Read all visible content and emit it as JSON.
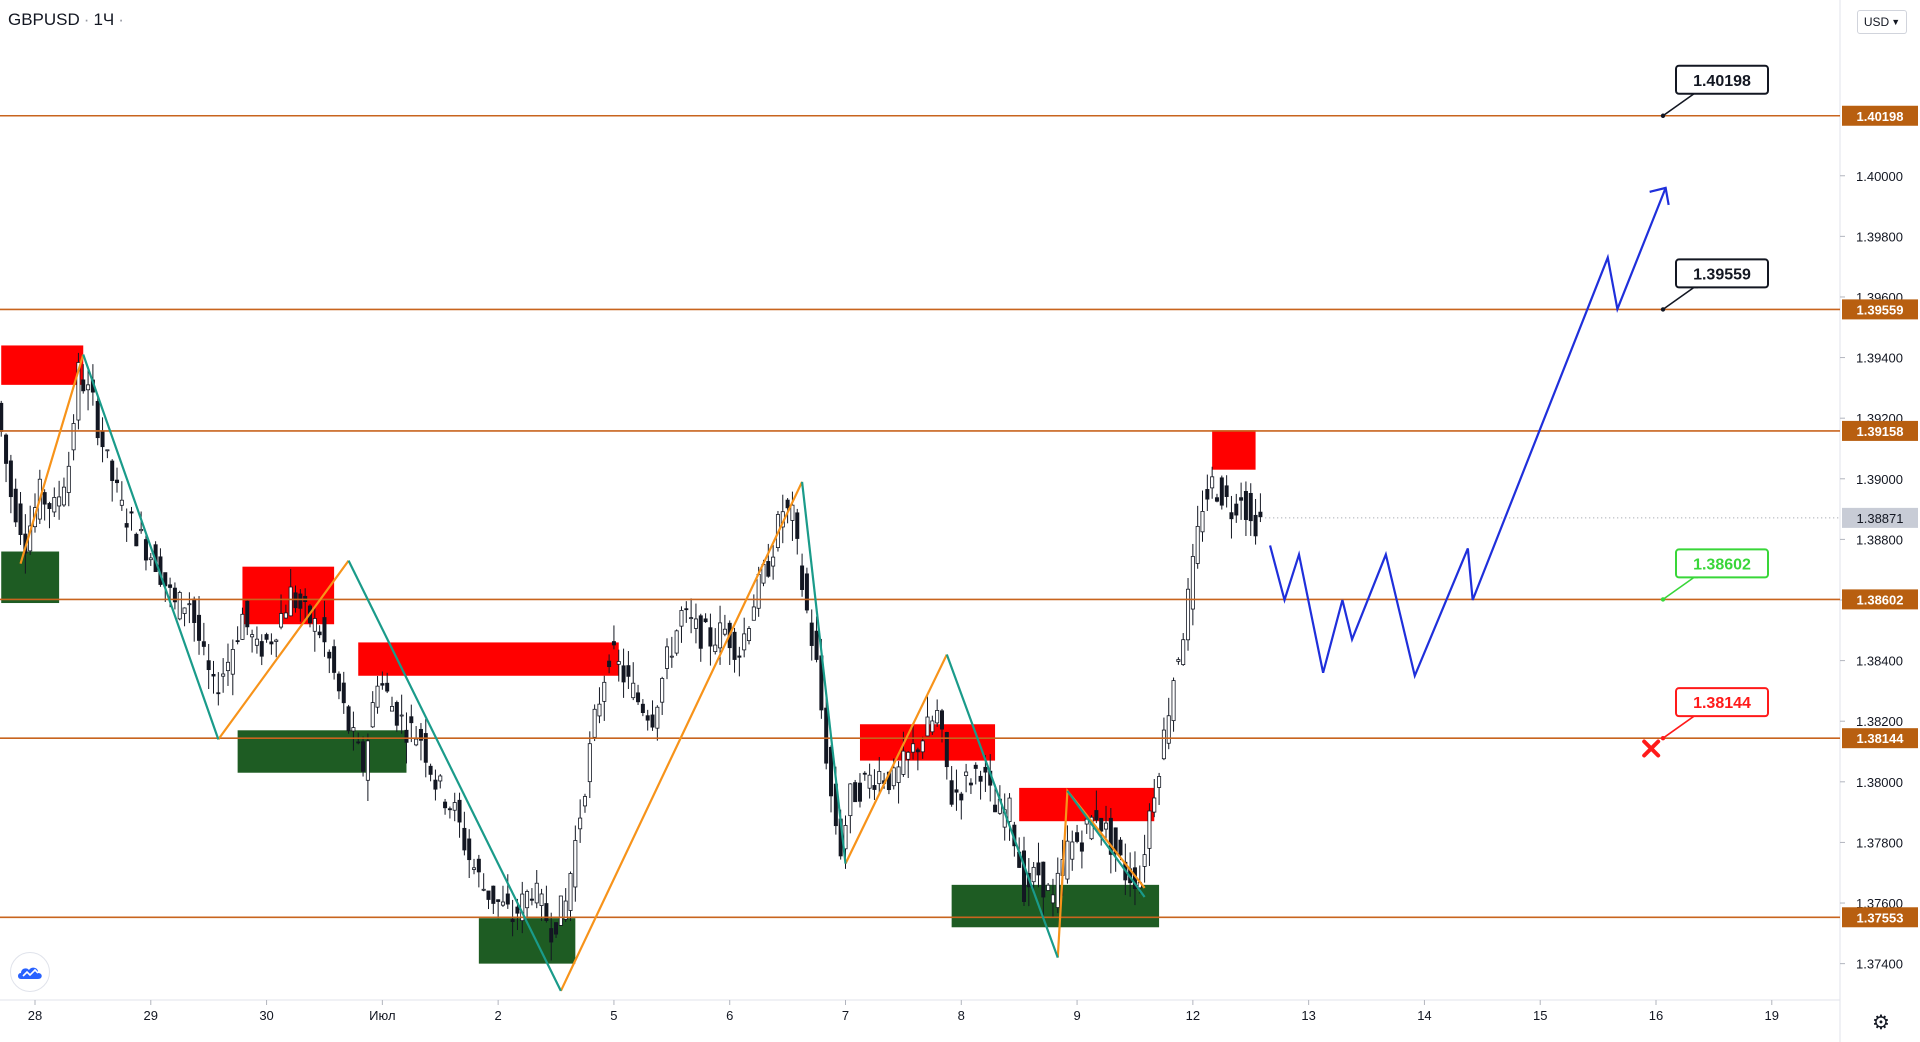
{
  "header": {
    "symbol": "GBPUSD",
    "interval": "1Ч",
    "currency_selector": "USD"
  },
  "colors": {
    "background": "#ffffff",
    "level_line": "#c8641e",
    "level_tag_bg": "#b85f10",
    "current_price_tag": "#c8ccd6",
    "up_candle": "#131722",
    "supply_zone": "#ff0000",
    "demand_zone": "#1e5c23",
    "impulse_up": "#f7931a",
    "impulse_down": "#1a9b8a",
    "forecast": "#1f2fdb",
    "target_green": "#39d639",
    "stop_red": "#ff1a1a"
  },
  "icons": {
    "logo": "tradingview-cloud-icon",
    "settings": "gear-icon",
    "stop": "x-mark-icon"
  },
  "chart_data": {
    "type": "candlestick",
    "timeframe": "1H",
    "y_axis": {
      "side": "right",
      "range": [
        1.3728,
        1.4058
      ],
      "ticks": [
        "1.40000",
        "1.39800",
        "1.39600",
        "1.39400",
        "1.39200",
        "1.39000",
        "1.38800",
        "1.38600",
        "1.38400",
        "1.38200",
        "1.38000",
        "1.37800",
        "1.37600",
        "1.37400"
      ]
    },
    "x_axis": {
      "ticks": [
        {
          "label": "28",
          "t": 0
        },
        {
          "label": "29",
          "t": 24
        },
        {
          "label": "30",
          "t": 48
        },
        {
          "label": "Июл",
          "t": 72
        },
        {
          "label": "2",
          "t": 96
        },
        {
          "label": "5",
          "t": 120
        },
        {
          "label": "6",
          "t": 144
        },
        {
          "label": "7",
          "t": 168
        },
        {
          "label": "8",
          "t": 192
        },
        {
          "label": "9",
          "t": 216
        },
        {
          "label": "12",
          "t": 240
        },
        {
          "label": "13",
          "t": 264
        },
        {
          "label": "14",
          "t": 288
        },
        {
          "label": "15",
          "t": 312
        },
        {
          "label": "16",
          "t": 336
        },
        {
          "label": "19",
          "t": 360
        }
      ]
    },
    "current_price": {
      "value": 1.38871,
      "label": "1.38871"
    },
    "levels": [
      {
        "value": 1.40198,
        "label": "1.40198"
      },
      {
        "value": 1.39559,
        "label": "1.39559"
      },
      {
        "value": 1.39158,
        "label": "1.39158"
      },
      {
        "value": 1.38602,
        "label": "1.38602"
      },
      {
        "value": 1.38144,
        "label": "1.38144"
      },
      {
        "value": 1.37553,
        "label": "1.37553"
      }
    ],
    "callouts": [
      {
        "label": "1.40198",
        "value": 1.40198,
        "style": "black"
      },
      {
        "label": "1.39559",
        "value": 1.39559,
        "style": "black"
      },
      {
        "label": "1.38602",
        "value": 1.38602,
        "style": "green"
      },
      {
        "label": "1.38144",
        "value": 1.38144,
        "style": "red"
      }
    ],
    "zones": [
      {
        "kind": "supply",
        "t0": -7,
        "t1": 10,
        "top": 1.3944,
        "bottom": 1.3931
      },
      {
        "kind": "demand",
        "t0": -7,
        "t1": 5,
        "top": 1.3876,
        "bottom": 1.3859
      },
      {
        "kind": "supply",
        "t0": 43,
        "t1": 62,
        "top": 1.3871,
        "bottom": 1.3852
      },
      {
        "kind": "demand",
        "t0": 42,
        "t1": 77,
        "top": 1.3817,
        "bottom": 1.3803
      },
      {
        "kind": "supply",
        "t0": 67,
        "t1": 121,
        "top": 1.3846,
        "bottom": 1.3835
      },
      {
        "kind": "demand",
        "t0": 92,
        "t1": 112,
        "top": 1.3755,
        "bottom": 1.374
      },
      {
        "kind": "supply",
        "t0": 171,
        "t1": 199,
        "top": 1.3819,
        "bottom": 1.3807
      },
      {
        "kind": "demand",
        "t0": 190,
        "t1": 233,
        "top": 1.3766,
        "bottom": 1.3752
      },
      {
        "kind": "supply",
        "t0": 204,
        "t1": 232,
        "top": 1.3798,
        "bottom": 1.3787
      },
      {
        "kind": "supply",
        "t0": 244,
        "t1": 253,
        "top": 1.3916,
        "bottom": 1.3903
      }
    ],
    "waves": {
      "orange": [
        [
          [
            -3,
            1.3872
          ],
          [
            10,
            1.3941
          ]
        ],
        [
          [
            38,
            1.3814
          ],
          [
            65,
            1.3873
          ]
        ],
        [
          [
            109,
            1.3731
          ],
          [
            159,
            1.3899
          ]
        ],
        [
          [
            168,
            1.3773
          ],
          [
            189,
            1.3842
          ]
        ],
        [
          [
            212,
            1.3742
          ],
          [
            214,
            1.3797
          ],
          [
            230,
            1.3765
          ]
        ]
      ],
      "teal": [
        [
          [
            10,
            1.3941
          ],
          [
            38,
            1.3814
          ]
        ],
        [
          [
            65,
            1.3873
          ],
          [
            109,
            1.3731
          ]
        ],
        [
          [
            159,
            1.3899
          ],
          [
            168,
            1.3773
          ]
        ],
        [
          [
            189,
            1.3842
          ],
          [
            212,
            1.3742
          ]
        ],
        [
          [
            214,
            1.3797
          ],
          [
            230,
            1.3762
          ]
        ]
      ]
    },
    "forecast_path": [
      [
        256,
        1.3878
      ],
      [
        259,
        1.386
      ],
      [
        262,
        1.3875
      ],
      [
        267,
        1.3836
      ],
      [
        271,
        1.386
      ],
      [
        273,
        1.3847
      ],
      [
        280,
        1.3875
      ],
      [
        286,
        1.3835
      ],
      [
        297,
        1.3877
      ],
      [
        298,
        1.386
      ],
      [
        326,
        1.3973
      ],
      [
        328,
        1.3956
      ],
      [
        338,
        1.3996
      ]
    ],
    "stop_marker": {
      "t": 335,
      "value": 1.3811
    },
    "ohlc_path": [
      [
        -7,
        1.3925
      ],
      [
        -4,
        1.3895
      ],
      [
        -1,
        1.388
      ],
      [
        2,
        1.3895
      ],
      [
        5,
        1.389
      ],
      [
        8,
        1.3905
      ],
      [
        10,
        1.3935
      ],
      [
        13,
        1.3925
      ],
      [
        16,
        1.3905
      ],
      [
        19,
        1.389
      ],
      [
        23,
        1.388
      ],
      [
        26,
        1.3873
      ],
      [
        30,
        1.3858
      ],
      [
        33,
        1.386
      ],
      [
        36,
        1.384
      ],
      [
        38,
        1.383
      ],
      [
        41,
        1.384
      ],
      [
        44,
        1.3855
      ],
      [
        47,
        1.3843
      ],
      [
        50,
        1.3848
      ],
      [
        54,
        1.3862
      ],
      [
        57,
        1.3855
      ],
      [
        60,
        1.385
      ],
      [
        63,
        1.3835
      ],
      [
        66,
        1.3818
      ],
      [
        69,
        1.3805
      ],
      [
        72,
        1.3835
      ],
      [
        75,
        1.3825
      ],
      [
        78,
        1.3818
      ],
      [
        81,
        1.3815
      ],
      [
        84,
        1.38
      ],
      [
        88,
        1.379
      ],
      [
        91,
        1.3775
      ],
      [
        94,
        1.3765
      ],
      [
        97,
        1.376
      ],
      [
        100,
        1.3755
      ],
      [
        104,
        1.3765
      ],
      [
        108,
        1.3752
      ],
      [
        111,
        1.376
      ],
      [
        114,
        1.379
      ],
      [
        117,
        1.382
      ],
      [
        120,
        1.3843
      ],
      [
        123,
        1.3835
      ],
      [
        126,
        1.3827
      ],
      [
        129,
        1.3822
      ],
      [
        132,
        1.384
      ],
      [
        135,
        1.3855
      ],
      [
        138,
        1.385
      ],
      [
        141,
        1.3847
      ],
      [
        144,
        1.385
      ],
      [
        147,
        1.3843
      ],
      [
        150,
        1.386
      ],
      [
        153,
        1.3872
      ],
      [
        156,
        1.389
      ],
      [
        158,
        1.3887
      ],
      [
        160,
        1.3865
      ],
      [
        163,
        1.3838
      ],
      [
        166,
        1.3795
      ],
      [
        168,
        1.3778
      ],
      [
        170,
        1.3795
      ],
      [
        173,
        1.38
      ],
      [
        176,
        1.3803
      ],
      [
        179,
        1.38
      ],
      [
        182,
        1.3808
      ],
      [
        185,
        1.3815
      ],
      [
        188,
        1.3822
      ],
      [
        191,
        1.3795
      ],
      [
        194,
        1.38
      ],
      [
        197,
        1.3805
      ],
      [
        200,
        1.379
      ],
      [
        203,
        1.379
      ],
      [
        206,
        1.3765
      ],
      [
        209,
        1.377
      ],
      [
        212,
        1.376
      ],
      [
        215,
        1.3778
      ],
      [
        218,
        1.3782
      ],
      [
        221,
        1.379
      ],
      [
        224,
        1.378
      ],
      [
        227,
        1.377
      ],
      [
        230,
        1.3768
      ],
      [
        232,
        1.379
      ],
      [
        235,
        1.3815
      ],
      [
        237,
        1.3835
      ],
      [
        239,
        1.385
      ],
      [
        241,
        1.387
      ],
      [
        243,
        1.3892
      ],
      [
        245,
        1.3898
      ],
      [
        247,
        1.3895
      ],
      [
        249,
        1.389
      ],
      [
        251,
        1.3896
      ],
      [
        253,
        1.3885
      ],
      [
        255,
        1.3887
      ]
    ]
  }
}
